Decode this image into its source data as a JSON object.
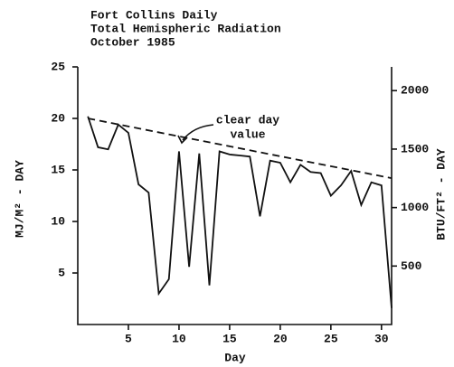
{
  "chart_data": {
    "type": "line",
    "title": [
      "Fort Collins Daily",
      "Total Hemispheric Radiation",
      "October 1985"
    ],
    "x_label": "Day",
    "y_label": "MJ/M² - DAY",
    "y2_label": "BTU/FT² - DAY",
    "annotation": [
      "clear day",
      "value"
    ],
    "xlim": [
      0,
      31
    ],
    "xticks": [
      5,
      10,
      15,
      20,
      25,
      30
    ],
    "ylim": [
      0,
      25
    ],
    "yticks": [
      5,
      10,
      15,
      20,
      25
    ],
    "y2lim": [
      0,
      2203
    ],
    "y2ticks": [
      500,
      1000,
      1500,
      2000
    ],
    "series": [
      {
        "color": "#111111",
        "style": "solid",
        "x": [
          1,
          2,
          3,
          4,
          5,
          6,
          7,
          8,
          9,
          10,
          11,
          12,
          13,
          14,
          15,
          16,
          17,
          18,
          19,
          20,
          21,
          22,
          23,
          24,
          25,
          26,
          27,
          28,
          29,
          30,
          31
        ],
        "values": [
          20.2,
          17.2,
          17.0,
          19.4,
          18.6,
          13.6,
          12.8,
          3.0,
          4.4,
          16.8,
          5.6,
          16.6,
          3.8,
          16.8,
          16.5,
          16.4,
          16.3,
          10.5,
          15.9,
          15.7,
          13.8,
          15.5,
          14.8,
          14.7,
          12.5,
          13.5,
          14.9,
          11.6,
          13.8,
          13.5,
          1.6
        ]
      },
      {
        "color": "#111111",
        "style": "dashed",
        "x": [
          1,
          31
        ],
        "values": [
          20.0,
          14.2
        ]
      }
    ]
  }
}
